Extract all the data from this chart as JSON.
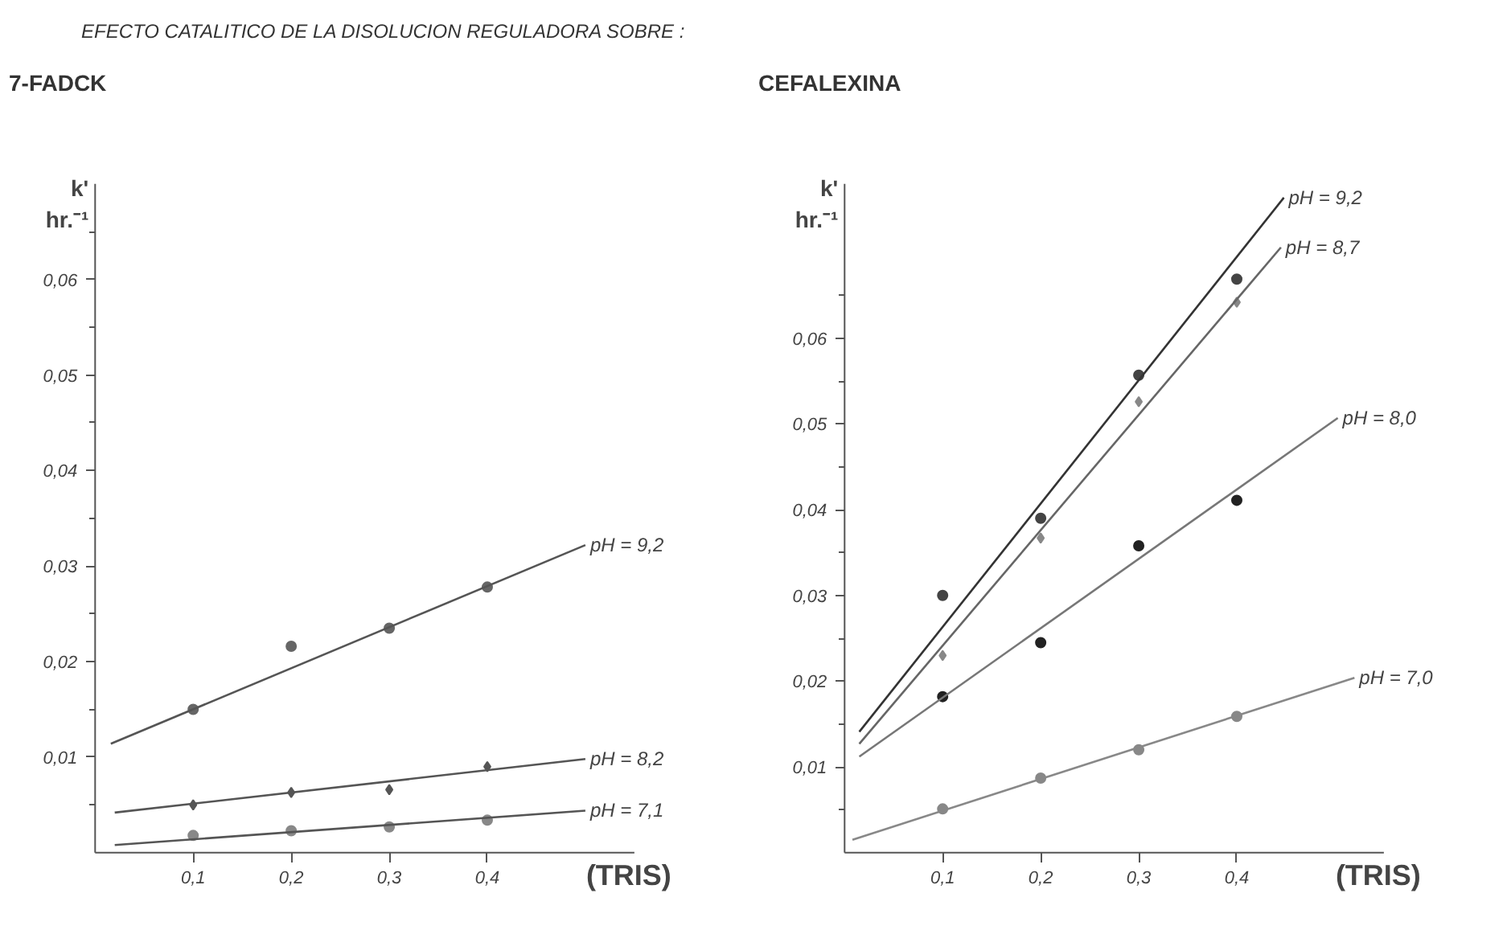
{
  "chart_data": [
    {
      "type": "scatter",
      "title": "EFECTO  CATALITICO  DE  LA  DISOLUCION  REGULADORA  SOBRE :",
      "subtitle": "7-FADCK",
      "xlabel": "(TRIS)",
      "ylabel": "k'\nhr.⁻¹",
      "grid": false,
      "xlim": [
        0,
        0.55
      ],
      "ylim": [
        0,
        0.07
      ],
      "xticks": [
        {
          "value": 0.1,
          "label": "0,1"
        },
        {
          "value": 0.2,
          "label": "0,2"
        },
        {
          "value": 0.3,
          "label": "0,3"
        },
        {
          "value": 0.4,
          "label": "0,4"
        }
      ],
      "yticks": [
        {
          "value": 0.005,
          "label": null
        },
        {
          "value": 0.01,
          "label": "0,01"
        },
        {
          "value": 0.015,
          "label": null
        },
        {
          "value": 0.02,
          "label": "0,02"
        },
        {
          "value": 0.025,
          "label": null
        },
        {
          "value": 0.03,
          "label": "0,03"
        },
        {
          "value": 0.035,
          "label": null
        },
        {
          "value": 0.04,
          "label": "0,04"
        },
        {
          "value": 0.045,
          "label": null
        },
        {
          "value": 0.05,
          "label": "0,05"
        },
        {
          "value": 0.055,
          "label": null
        },
        {
          "value": 0.06,
          "label": "0,06"
        },
        {
          "value": 0.065,
          "label": null
        }
      ],
      "series": [
        {
          "marker": "circle",
          "color": "#666666",
          "x": [
            0.1,
            0.2,
            0.3,
            0.4
          ],
          "values": [
            0.015,
            0.0216,
            0.0235,
            0.0278
          ]
        },
        {
          "type": "line",
          "name": "pH = 9,2",
          "color": "#555555",
          "x": [
            0.016,
            0.5
          ],
          "values": [
            0.0114,
            0.0322
          ]
        },
        {
          "marker": "diamond",
          "color": "#555555",
          "x": [
            0.1,
            0.2,
            0.3,
            0.4
          ],
          "values": [
            0.005,
            0.0063,
            0.0066,
            0.009
          ]
        },
        {
          "type": "line",
          "name": "pH = 8,2",
          "color": "#555555",
          "x": [
            0.02,
            0.5
          ],
          "values": [
            0.0042,
            0.0098
          ]
        },
        {
          "marker": "circle",
          "color": "#888888",
          "x": [
            0.1,
            0.2,
            0.3,
            0.4
          ],
          "values": [
            0.0018,
            0.0023,
            0.0027,
            0.0034
          ]
        },
        {
          "type": "line",
          "name": "pH = 7,1",
          "color": "#555555",
          "x": [
            0.02,
            0.5
          ],
          "values": [
            0.0008,
            0.0044
          ]
        }
      ]
    },
    {
      "type": "scatter",
      "title": "CEFALEXINA",
      "xlabel": "(TRIS)",
      "ylabel": "k'\nhr.⁻¹",
      "grid": false,
      "xlim": [
        0,
        0.55
      ],
      "ylim": [
        0,
        0.078
      ],
      "xticks": [
        {
          "value": 0.1,
          "label": "0,1"
        },
        {
          "value": 0.2,
          "label": "0,2"
        },
        {
          "value": 0.3,
          "label": "0,3"
        },
        {
          "value": 0.4,
          "label": "0,4"
        }
      ],
      "yticks": [
        {
          "value": 0.005,
          "label": null
        },
        {
          "value": 0.01,
          "label": "0,01"
        },
        {
          "value": 0.015,
          "label": null
        },
        {
          "value": 0.02,
          "label": "0,02"
        },
        {
          "value": 0.025,
          "label": null
        },
        {
          "value": 0.03,
          "label": "0,03"
        },
        {
          "value": 0.035,
          "label": null
        },
        {
          "value": 0.04,
          "label": "0,04"
        },
        {
          "value": 0.045,
          "label": null
        },
        {
          "value": 0.05,
          "label": "0,05"
        },
        {
          "value": 0.055,
          "label": null
        },
        {
          "value": 0.06,
          "label": "0,06"
        },
        {
          "value": 0.065,
          "label": null
        }
      ],
      "series": [
        {
          "marker": "circle",
          "color": "#444444",
          "x": [
            0.1,
            0.2,
            0.3,
            0.4
          ],
          "values": [
            0.03,
            0.039,
            0.0557,
            0.0669
          ]
        },
        {
          "type": "line",
          "name": "pH = 9,2",
          "color": "#333333",
          "x": [
            0.015,
            0.448
          ],
          "values": [
            0.0141,
            0.0764
          ]
        },
        {
          "marker": "diamond",
          "color": "#888888",
          "x": [
            0.1,
            0.2,
            0.3,
            0.4
          ],
          "values": [
            0.023,
            0.0367,
            0.0526,
            0.0642
          ]
        },
        {
          "type": "line",
          "name": "pH = 8,7",
          "color": "#666666",
          "x": [
            0.015,
            0.445
          ],
          "values": [
            0.0127,
            0.0706
          ]
        },
        {
          "marker": "circle",
          "color": "#222222",
          "x": [
            0.1,
            0.2,
            0.3,
            0.4
          ],
          "values": [
            0.0182,
            0.0245,
            0.0358,
            0.0411
          ]
        },
        {
          "type": "line",
          "name": "pH = 8,0",
          "color": "#777777",
          "x": [
            0.015,
            0.503
          ],
          "values": [
            0.0112,
            0.0507
          ]
        },
        {
          "marker": "circle",
          "color": "#888888",
          "x": [
            0.1,
            0.2,
            0.3,
            0.4
          ],
          "values": [
            0.0051,
            0.0087,
            0.012,
            0.0159
          ]
        },
        {
          "type": "line",
          "name": "pH = 7,0",
          "color": "#888888",
          "x": [
            0.008,
            0.52
          ],
          "values": [
            0.0015,
            0.0204
          ]
        }
      ]
    }
  ]
}
